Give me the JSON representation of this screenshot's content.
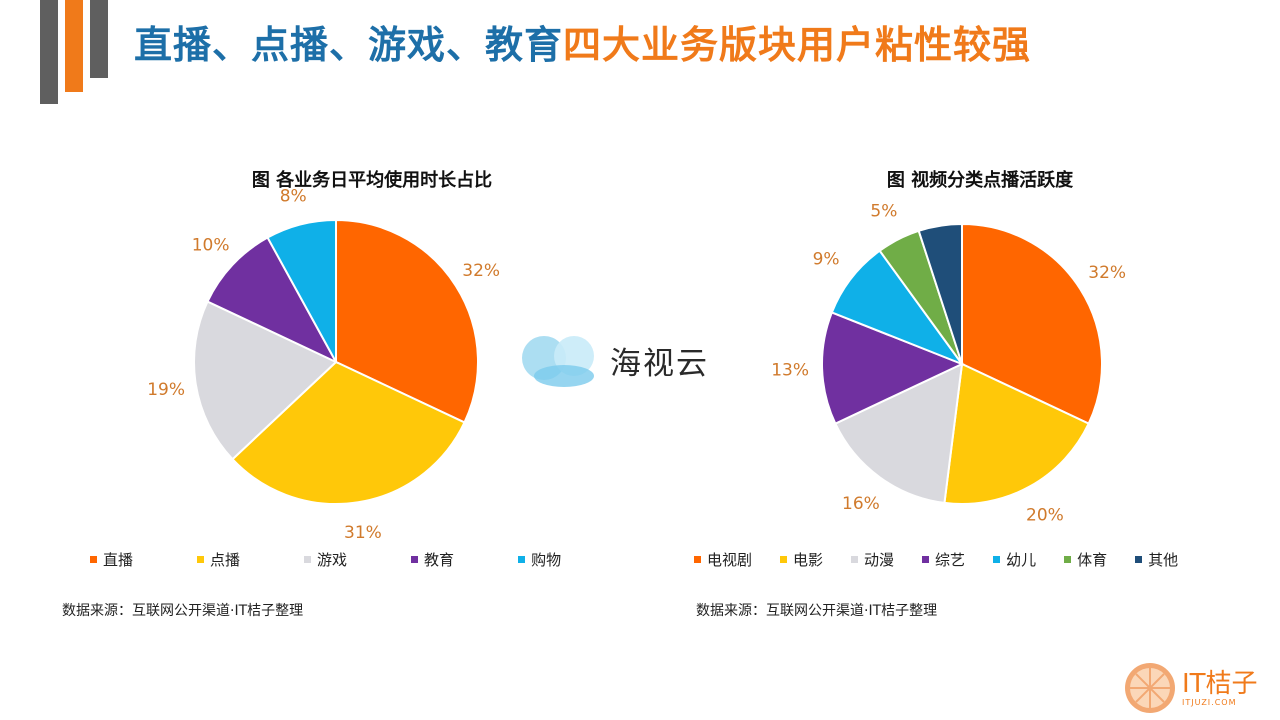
{
  "title": {
    "part1": "直播、点播、游戏、教育",
    "part2": "四大业务版块用户粘性较强"
  },
  "colors": {
    "accent_orange": "#f07a1a",
    "title_blue": "#1d6fa8",
    "bar_gray": "#5f5f5f",
    "label_color": "#d07a2c"
  },
  "chart_data": [
    {
      "type": "pie",
      "title": "图 各业务日平均使用时长占比",
      "categories": [
        "直播",
        "点播",
        "游戏",
        "教育",
        "购物"
      ],
      "values": [
        32,
        31,
        19,
        10,
        8
      ],
      "labels": [
        "32%",
        "31%",
        "19%",
        "10%",
        "8%"
      ],
      "colors": [
        "#ff6600",
        "#ffc809",
        "#d9d9de",
        "#7030a0",
        "#0fb0e8"
      ],
      "legend_position": "bottom",
      "source": "数据来源：互联网公开渠道·IT桔子整理"
    },
    {
      "type": "pie",
      "title": "图 视频分类点播活跃度",
      "categories": [
        "电视剧",
        "电影",
        "动漫",
        "综艺",
        "幼儿",
        "体育",
        "其他"
      ],
      "values": [
        32,
        20,
        16,
        13,
        9,
        5,
        5
      ],
      "labels": [
        "32%",
        "20%",
        "16%",
        "13%",
        "9%",
        "5%",
        ""
      ],
      "colors": [
        "#ff6600",
        "#ffc809",
        "#d9d9de",
        "#7030a0",
        "#0fb0e8",
        "#70ad47",
        "#1f4e79"
      ],
      "legend_position": "bottom",
      "source": "数据来源：互联网公开渠道·IT桔子整理"
    }
  ],
  "center_logo": {
    "text": "海视云",
    "icon": "cloud-icon"
  },
  "corner_logo": {
    "text": "IT桔子",
    "subtext": "ITJUZI.COM",
    "icon": "orange-slice-icon"
  }
}
